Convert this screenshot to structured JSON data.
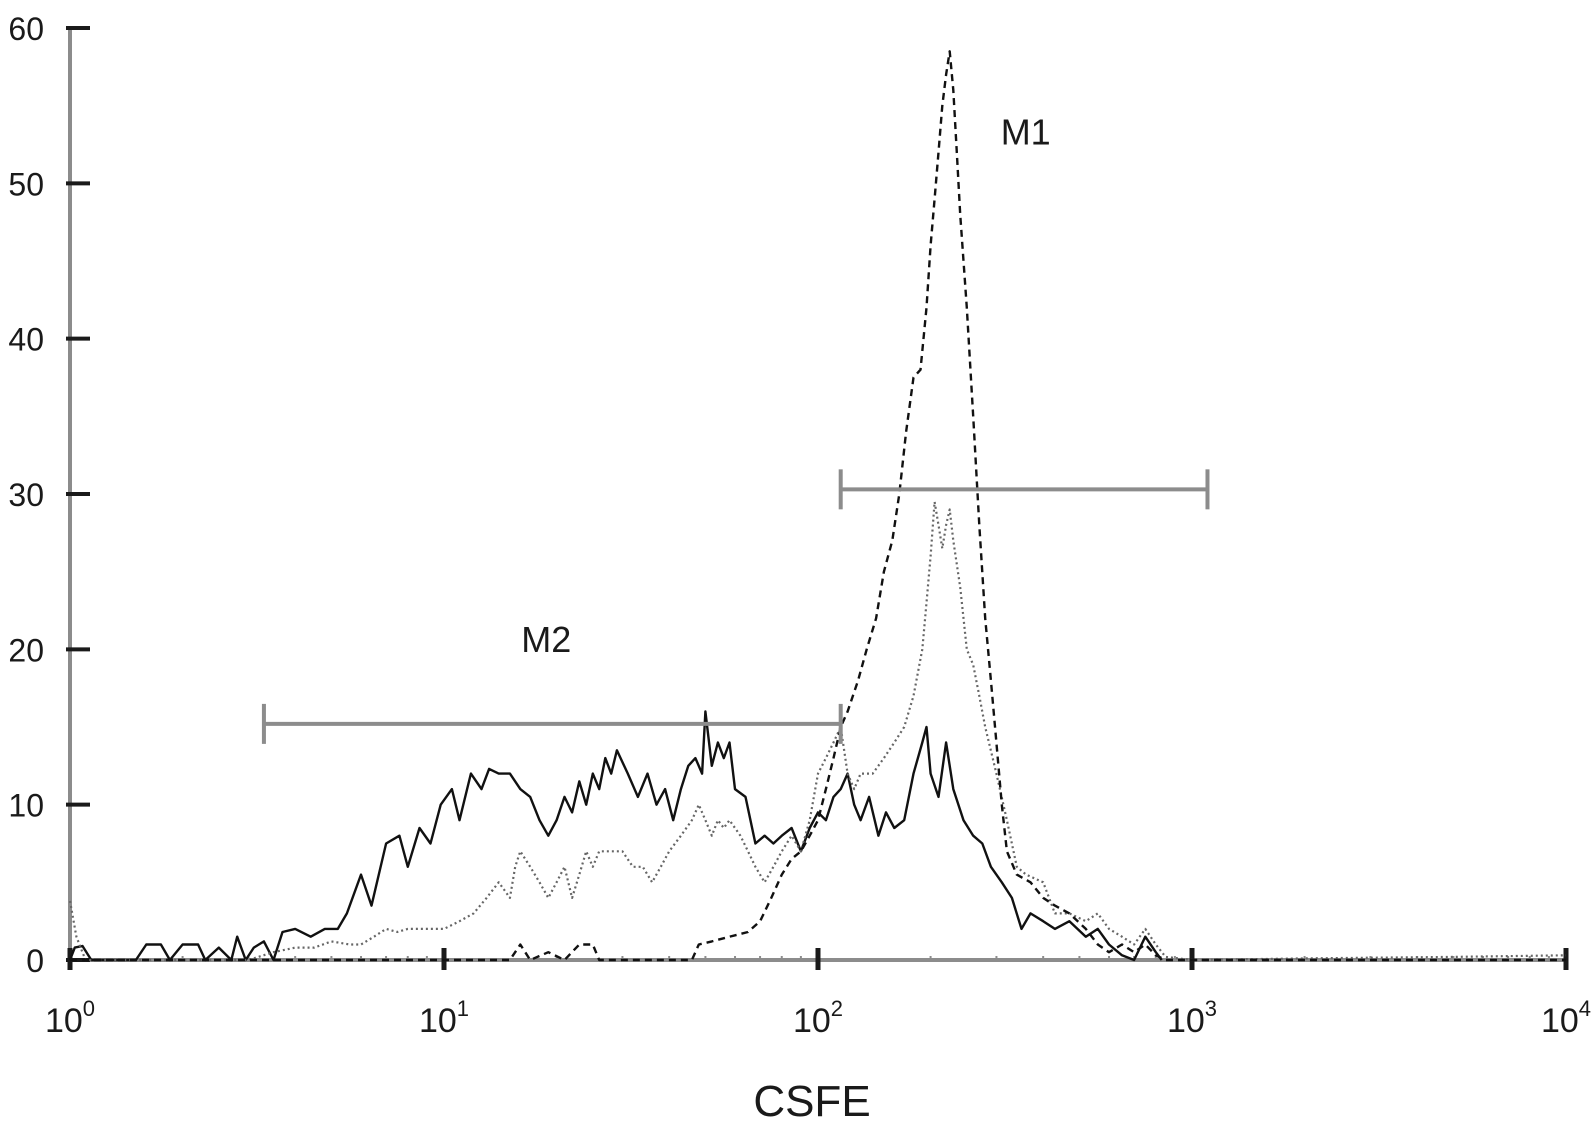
{
  "chart_data": {
    "type": "line",
    "xscale": "log",
    "xlim": [
      1,
      10000
    ],
    "ylim": [
      0,
      60
    ],
    "xlabel": "CSFE",
    "ylabel": "",
    "yticks": [
      0,
      10,
      20,
      30,
      40,
      50,
      60
    ],
    "xticks": [
      {
        "value": 1,
        "base": "10",
        "exp": "0"
      },
      {
        "value": 10,
        "base": "10",
        "exp": "1"
      },
      {
        "value": 100,
        "base": "10",
        "exp": "2"
      },
      {
        "value": 1000,
        "base": "10",
        "exp": "3"
      },
      {
        "value": 10000,
        "base": "10",
        "exp": "4"
      }
    ],
    "grid": false,
    "legend": "none",
    "markers": [
      {
        "label": "M1",
        "x_start": 115,
        "x_end": 1100,
        "y": 30.3
      },
      {
        "label": "M2",
        "x_start": 3.3,
        "x_end": 115,
        "y": 15.2
      }
    ],
    "series": [
      {
        "style": "solid",
        "color": "#111111",
        "points": [
          [
            1.0,
            0
          ],
          [
            1.03,
            0.8
          ],
          [
            1.08,
            0.9
          ],
          [
            1.14,
            0
          ],
          [
            1.3,
            0
          ],
          [
            1.5,
            0
          ],
          [
            1.6,
            1
          ],
          [
            1.75,
            1
          ],
          [
            1.85,
            0
          ],
          [
            2.0,
            1
          ],
          [
            2.2,
            1
          ],
          [
            2.3,
            0
          ],
          [
            2.5,
            0.8
          ],
          [
            2.7,
            0
          ],
          [
            2.8,
            1.5
          ],
          [
            2.95,
            0
          ],
          [
            3.1,
            0.8
          ],
          [
            3.3,
            1.2
          ],
          [
            3.5,
            0
          ],
          [
            3.7,
            1.8
          ],
          [
            4.0,
            2
          ],
          [
            4.4,
            1.5
          ],
          [
            4.8,
            2
          ],
          [
            5.2,
            2
          ],
          [
            5.5,
            3
          ],
          [
            6.0,
            5.5
          ],
          [
            6.4,
            3.5
          ],
          [
            7.0,
            7.5
          ],
          [
            7.6,
            8
          ],
          [
            8.0,
            6
          ],
          [
            8.6,
            8.5
          ],
          [
            9.2,
            7.5
          ],
          [
            9.8,
            10
          ],
          [
            10.5,
            11
          ],
          [
            11.0,
            9
          ],
          [
            11.8,
            12
          ],
          [
            12.6,
            11
          ],
          [
            13.2,
            12.3
          ],
          [
            14.0,
            12
          ],
          [
            15.0,
            12
          ],
          [
            16.0,
            11
          ],
          [
            17.0,
            10.5
          ],
          [
            18.0,
            9
          ],
          [
            19.0,
            8
          ],
          [
            20.0,
            9
          ],
          [
            21.0,
            10.5
          ],
          [
            22.0,
            9.5
          ],
          [
            23.0,
            11.5
          ],
          [
            24.0,
            10
          ],
          [
            25.0,
            12
          ],
          [
            26.0,
            11
          ],
          [
            27.0,
            13
          ],
          [
            28.0,
            12
          ],
          [
            29.0,
            13.5
          ],
          [
            31.0,
            12
          ],
          [
            33.0,
            10.5
          ],
          [
            35.0,
            12
          ],
          [
            37.0,
            10
          ],
          [
            39.0,
            11
          ],
          [
            41.0,
            9
          ],
          [
            43.0,
            11
          ],
          [
            45.0,
            12.5
          ],
          [
            47.0,
            13
          ],
          [
            49.0,
            12
          ],
          [
            50.0,
            16
          ],
          [
            52.0,
            12.5
          ],
          [
            54.0,
            14
          ],
          [
            56.0,
            13
          ],
          [
            58.0,
            14
          ],
          [
            60.0,
            11
          ],
          [
            64.0,
            10.5
          ],
          [
            68.0,
            7.5
          ],
          [
            72.0,
            8
          ],
          [
            76.0,
            7.5
          ],
          [
            80.0,
            8
          ],
          [
            85.0,
            8.5
          ],
          [
            90.0,
            7
          ],
          [
            95.0,
            8.5
          ],
          [
            100.0,
            9.5
          ],
          [
            105.0,
            9
          ],
          [
            110.0,
            10.5
          ],
          [
            115.0,
            11
          ],
          [
            120.0,
            12
          ],
          [
            125.0,
            10
          ],
          [
            130.0,
            9
          ],
          [
            137.0,
            10.5
          ],
          [
            145.0,
            8
          ],
          [
            152.0,
            9.5
          ],
          [
            160.0,
            8.5
          ],
          [
            170.0,
            9
          ],
          [
            180.0,
            12
          ],
          [
            190.0,
            14
          ],
          [
            195.0,
            15
          ],
          [
            200.0,
            12
          ],
          [
            210.0,
            10.5
          ],
          [
            220.0,
            14
          ],
          [
            230.0,
            11
          ],
          [
            245.0,
            9
          ],
          [
            260.0,
            8
          ],
          [
            275.0,
            7.5
          ],
          [
            290.0,
            6
          ],
          [
            310.0,
            5
          ],
          [
            330.0,
            4
          ],
          [
            350.0,
            2
          ],
          [
            370.0,
            3
          ],
          [
            400.0,
            2.5
          ],
          [
            430.0,
            2
          ],
          [
            470.0,
            2.5
          ],
          [
            520.0,
            1.5
          ],
          [
            560.0,
            2
          ],
          [
            600.0,
            1
          ],
          [
            650.0,
            0.3
          ],
          [
            700.0,
            0
          ],
          [
            750.0,
            1.5
          ],
          [
            800.0,
            0.5
          ],
          [
            830.0,
            0
          ]
        ]
      },
      {
        "style": "dotted",
        "color": "#666666",
        "points": [
          [
            1.0,
            3.8
          ],
          [
            1.04,
            1.5
          ],
          [
            1.1,
            0
          ],
          [
            1.5,
            0
          ],
          [
            2.5,
            0
          ],
          [
            3.0,
            0
          ],
          [
            3.5,
            0.5
          ],
          [
            4.0,
            0.8
          ],
          [
            4.5,
            0.8
          ],
          [
            5.0,
            1.2
          ],
          [
            5.6,
            1
          ],
          [
            6.0,
            1
          ],
          [
            6.5,
            1.5
          ],
          [
            7.0,
            2
          ],
          [
            7.5,
            1.8
          ],
          [
            8.0,
            2
          ],
          [
            9.0,
            2
          ],
          [
            10.0,
            2
          ],
          [
            11.0,
            2.5
          ],
          [
            12.0,
            3
          ],
          [
            13.0,
            4
          ],
          [
            14.0,
            5
          ],
          [
            14.5,
            4.5
          ],
          [
            15.0,
            4
          ],
          [
            15.5,
            6
          ],
          [
            16.0,
            7
          ],
          [
            17.0,
            6
          ],
          [
            18.0,
            5
          ],
          [
            19.0,
            4
          ],
          [
            20.0,
            5
          ],
          [
            21.0,
            6
          ],
          [
            22.0,
            4
          ],
          [
            23.0,
            5.5
          ],
          [
            24.0,
            7
          ],
          [
            25.0,
            6
          ],
          [
            26.0,
            7
          ],
          [
            28.0,
            7
          ],
          [
            30.0,
            7
          ],
          [
            32.0,
            6
          ],
          [
            34.0,
            6
          ],
          [
            36.0,
            5
          ],
          [
            38.0,
            6
          ],
          [
            40.0,
            7
          ],
          [
            43.0,
            8
          ],
          [
            46.0,
            9
          ],
          [
            48.0,
            10
          ],
          [
            50.0,
            9
          ],
          [
            52.0,
            8
          ],
          [
            54.0,
            9
          ],
          [
            56.0,
            8.5
          ],
          [
            58.0,
            9
          ],
          [
            62.0,
            8
          ],
          [
            65.0,
            7
          ],
          [
            68.0,
            6
          ],
          [
            72.0,
            5
          ],
          [
            76.0,
            6
          ],
          [
            80.0,
            7
          ],
          [
            85.0,
            8
          ],
          [
            90.0,
            7
          ],
          [
            95.0,
            9
          ],
          [
            100.0,
            12
          ],
          [
            105.0,
            13
          ],
          [
            110.0,
            14
          ],
          [
            115.0,
            15
          ],
          [
            120.0,
            12
          ],
          [
            125.0,
            11
          ],
          [
            130.0,
            12
          ],
          [
            140.0,
            12
          ],
          [
            150.0,
            13
          ],
          [
            160.0,
            14
          ],
          [
            170.0,
            15
          ],
          [
            180.0,
            17
          ],
          [
            190.0,
            20
          ],
          [
            195.0,
            23
          ],
          [
            200.0,
            26
          ],
          [
            205.0,
            29.5
          ],
          [
            210.0,
            28
          ],
          [
            215.0,
            26.5
          ],
          [
            220.0,
            28
          ],
          [
            225.0,
            29
          ],
          [
            230.0,
            27
          ],
          [
            240.0,
            24
          ],
          [
            250.0,
            20
          ],
          [
            260.0,
            19
          ],
          [
            270.0,
            17
          ],
          [
            280.0,
            15
          ],
          [
            300.0,
            12
          ],
          [
            320.0,
            9
          ],
          [
            340.0,
            6
          ],
          [
            360.0,
            5.5
          ],
          [
            400.0,
            5
          ],
          [
            430.0,
            3
          ],
          [
            470.0,
            3
          ],
          [
            520.0,
            2.5
          ],
          [
            560.0,
            3
          ],
          [
            600.0,
            2
          ],
          [
            650.0,
            1.5
          ],
          [
            700.0,
            1
          ],
          [
            750.0,
            2
          ],
          [
            800.0,
            1
          ],
          [
            850.0,
            0.2
          ],
          [
            1000.0,
            0
          ],
          [
            2000.0,
            0.1
          ],
          [
            5000.0,
            0.2
          ],
          [
            10000.0,
            0.3
          ]
        ]
      },
      {
        "style": "dashed",
        "color": "#111111",
        "points": [
          [
            1.0,
            0
          ],
          [
            2.0,
            0
          ],
          [
            5.0,
            0
          ],
          [
            10.0,
            0
          ],
          [
            15.0,
            0
          ],
          [
            16.0,
            1
          ],
          [
            17.0,
            0
          ],
          [
            19.0,
            0.5
          ],
          [
            21.0,
            0
          ],
          [
            23.0,
            1
          ],
          [
            25.0,
            1
          ],
          [
            26.0,
            0
          ],
          [
            30.0,
            0
          ],
          [
            40.0,
            0
          ],
          [
            46.0,
            0
          ],
          [
            48.0,
            1
          ],
          [
            52.0,
            1.2
          ],
          [
            58.0,
            1.5
          ],
          [
            65.0,
            1.8
          ],
          [
            70.0,
            2.5
          ],
          [
            75.0,
            4
          ],
          [
            80.0,
            5.5
          ],
          [
            85.0,
            6.5
          ],
          [
            90.0,
            7
          ],
          [
            95.0,
            8
          ],
          [
            100.0,
            9
          ],
          [
            105.0,
            11
          ],
          [
            110.0,
            13
          ],
          [
            115.0,
            15
          ],
          [
            120.0,
            16
          ],
          [
            128.0,
            18
          ],
          [
            135.0,
            20
          ],
          [
            143.0,
            22
          ],
          [
            150.0,
            25
          ],
          [
            158.0,
            27
          ],
          [
            165.0,
            30
          ],
          [
            172.0,
            34
          ],
          [
            180.0,
            37.5
          ],
          [
            188.0,
            38
          ],
          [
            195.0,
            42
          ],
          [
            200.0,
            46
          ],
          [
            205.0,
            49
          ],
          [
            210.0,
            52
          ],
          [
            215.0,
            55
          ],
          [
            220.0,
            57
          ],
          [
            225.0,
            58.5
          ],
          [
            230.0,
            56
          ],
          [
            235.0,
            52
          ],
          [
            240.0,
            48
          ],
          [
            250.0,
            42
          ],
          [
            260.0,
            35
          ],
          [
            270.0,
            28
          ],
          [
            280.0,
            22
          ],
          [
            290.0,
            18
          ],
          [
            300.0,
            14
          ],
          [
            310.0,
            10
          ],
          [
            320.0,
            7
          ],
          [
            340.0,
            5.5
          ],
          [
            370.0,
            5
          ],
          [
            400.0,
            4
          ],
          [
            430.0,
            3.5
          ],
          [
            470.0,
            3
          ],
          [
            520.0,
            2
          ],
          [
            560.0,
            1
          ],
          [
            600.0,
            0.5
          ],
          [
            650.0,
            1
          ],
          [
            700.0,
            0.5
          ],
          [
            750.0,
            1
          ],
          [
            800.0,
            0.3
          ],
          [
            850.0,
            0
          ],
          [
            1000.0,
            0
          ],
          [
            3000.0,
            0
          ],
          [
            10000.0,
            0
          ]
        ]
      }
    ]
  }
}
